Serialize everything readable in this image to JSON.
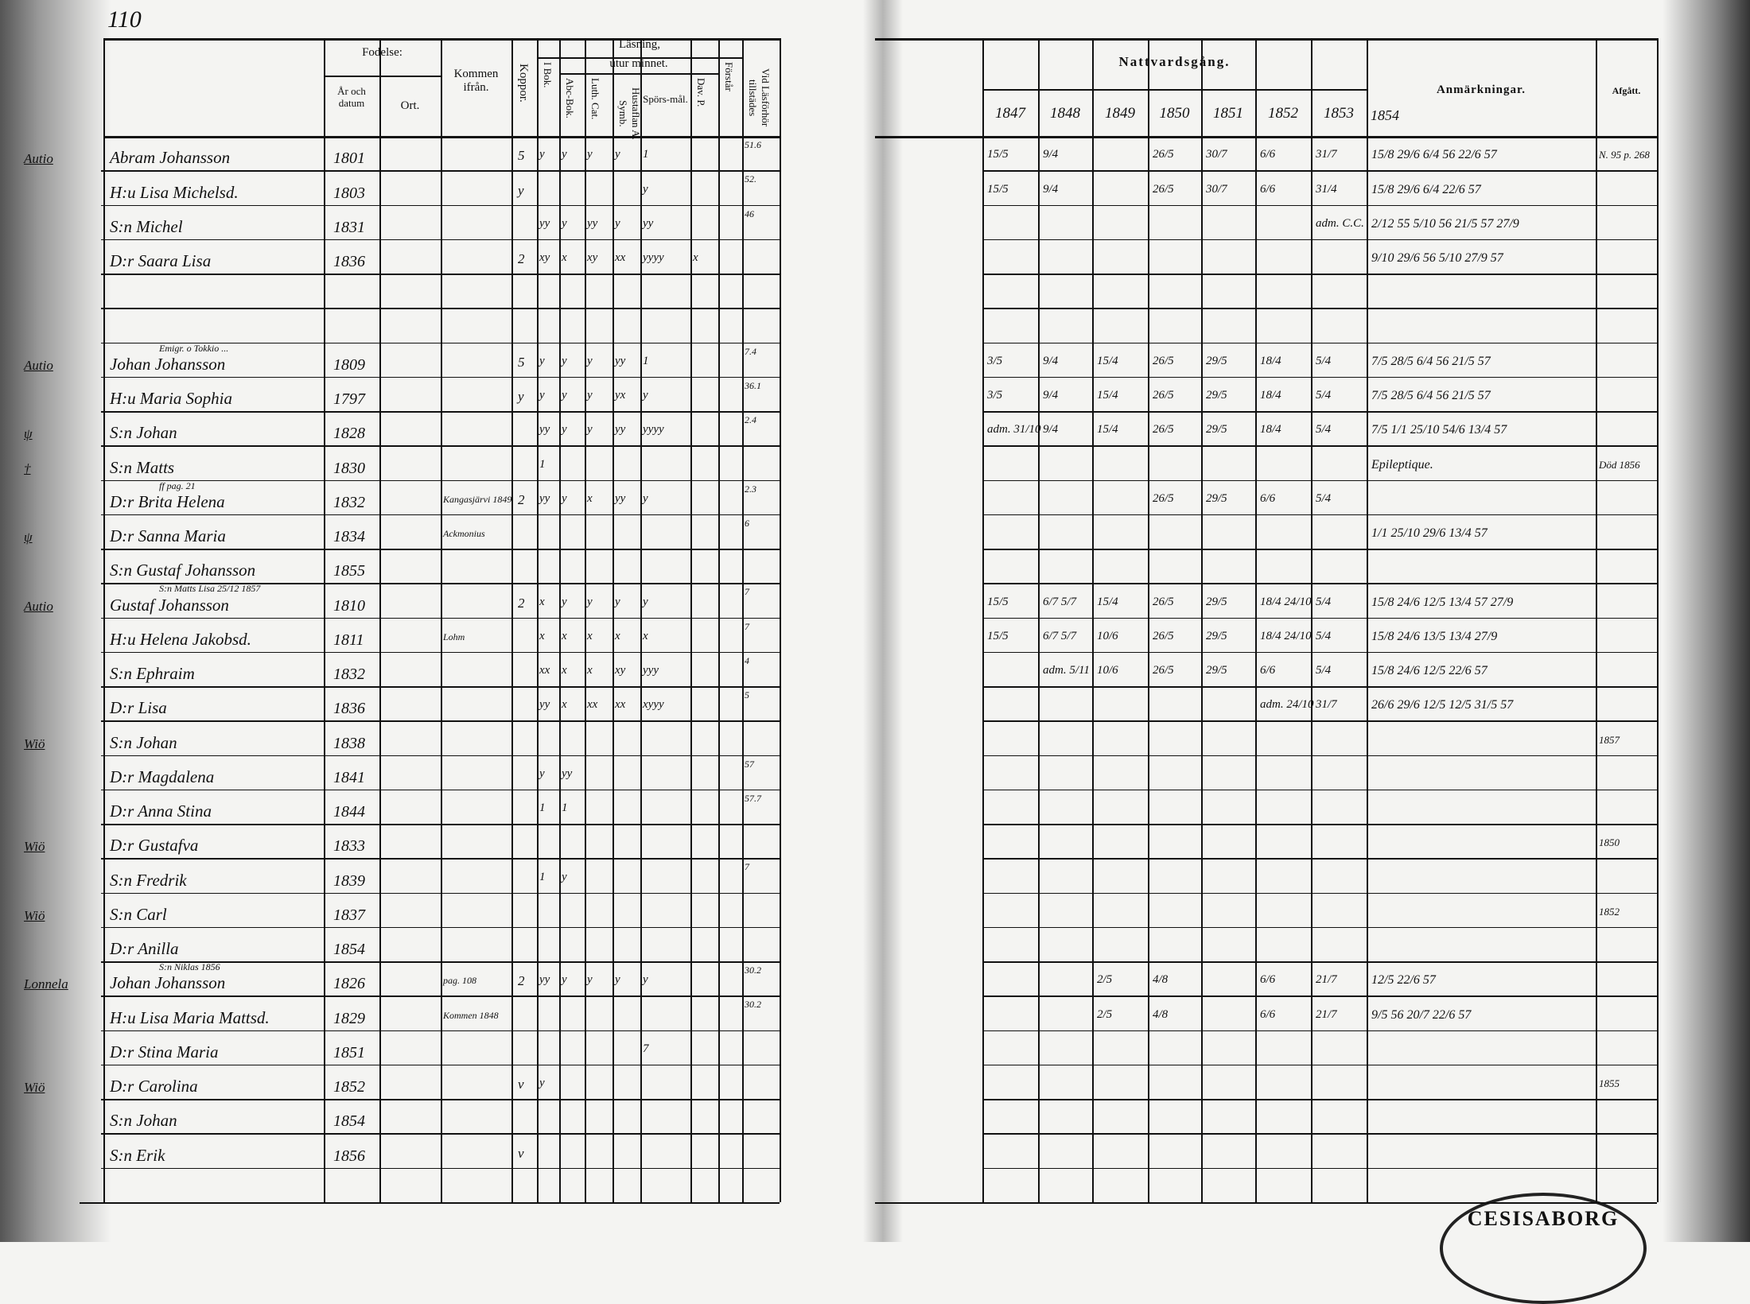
{
  "page_number": "110",
  "left_headers": {
    "fodelse": "Fodelse:",
    "ar_och_datum": "År och datum",
    "ort": "Ort.",
    "kommen_ifran": "Kommen ifrån.",
    "koppor": "Koppor.",
    "lasning": "Läsning,",
    "utur_minnet": "utur minnet.",
    "i_bok": "I Bok.",
    "abc_bok": "Abc-Bok.",
    "luth_cat": "Luth. Cat.",
    "hustaflan": "Hustaflan A. Symb.",
    "sporsmal": "Spörs-mål.",
    "dav_p": "Dav. P.",
    "forstar": "Förstår",
    "vid_lasforhor": "Vid Läsförhör tillstädes"
  },
  "right_headers": {
    "nattvardsgang": "Nattvardsgång.",
    "years": [
      "1847",
      "1848",
      "1849",
      "1850",
      "1851",
      "1852",
      "1853"
    ],
    "anmarkningar": "Anmärkningar.",
    "anm_year": "1854",
    "afgatt": "Afgått."
  },
  "rows": [
    {
      "margin": "Autio",
      "name": "Abram Johansson",
      "date": "1801",
      "koppor": "5",
      "reading": [
        "y",
        "y",
        "y",
        "y",
        "1",
        "",
        ""
      ],
      "vid": "51.6",
      "comm": [
        "15/5",
        "9/4",
        "",
        "26/5",
        "30/7",
        "6/6",
        "31/7"
      ],
      "anm": "15/8 29/6 6/4 56 22/6 57",
      "afgatt": "N. 95 p. 268"
    },
    {
      "name": "H:u Lisa Michelsd.",
      "date": "1803",
      "koppor": "y",
      "reading": [
        "",
        "",
        "",
        "",
        "y",
        "",
        ""
      ],
      "vid": "52.",
      "comm": [
        "15/5",
        "9/4",
        "",
        "26/5",
        "30/7",
        "6/6",
        "31/4"
      ],
      "anm": "15/8 29/6 6/4 22/6 57"
    },
    {
      "name": "S:n Michel",
      "date": "1831",
      "reading": [
        "yy",
        "y",
        "yy",
        "y",
        "yy",
        "",
        ""
      ],
      "vid": "46",
      "comm": [
        "",
        "",
        "",
        "",
        "",
        "",
        "adm. C.C."
      ],
      "anm": "2/12 55 5/10 56 21/5 57 27/9"
    },
    {
      "name": "D:r Saara Lisa",
      "date": "1836",
      "koppor": "2",
      "reading": [
        "xy",
        "x",
        "xy",
        "xx",
        "yyyy",
        "x",
        ""
      ],
      "vid": "",
      "comm": [
        "",
        "",
        "",
        "",
        "",
        "",
        ""
      ],
      "anm": "9/10 29/6 56 5/10 27/9 57"
    },
    {
      "name": "",
      "date": ""
    },
    {
      "name": "",
      "date": ""
    },
    {
      "margin": "Autio",
      "note": "Emigr. o Tokkio ...",
      "name": "Johan Johansson",
      "date": "1809",
      "koppor": "5",
      "reading": [
        "y",
        "y",
        "y",
        "yy",
        "1",
        "",
        ""
      ],
      "vid": "7.4",
      "comm": [
        "3/5",
        "9/4",
        "15/4",
        "26/5",
        "29/5",
        "18/4",
        "5/4"
      ],
      "anm": "7/5 28/5 6/4 56 21/5 57"
    },
    {
      "name": "H:u Maria Sophia",
      "date": "1797",
      "koppor": "y",
      "reading": [
        "y",
        "y",
        "y",
        "yx",
        "y",
        "",
        ""
      ],
      "vid": "36.1",
      "comm": [
        "3/5",
        "9/4",
        "15/4",
        "26/5",
        "29/5",
        "18/4",
        "5/4"
      ],
      "anm": "7/5 28/5 6/4 56 21/5 57"
    },
    {
      "margin": "ψ",
      "name": "S:n Johan",
      "date": "1828",
      "reading": [
        "yy",
        "y",
        "y",
        "yy",
        "yyyy",
        "",
        ""
      ],
      "vid": "2.4",
      "comm": [
        "adm. 31/10",
        "9/4",
        "15/4",
        "26/5",
        "29/5",
        "18/4",
        "5/4"
      ],
      "anm": "7/5 1/1 25/10 54/6 13/4 57"
    },
    {
      "margin": "†",
      "name": "S:n Matts",
      "date": "1830",
      "reading": [
        "1",
        "",
        "",
        "",
        "",
        "",
        ""
      ],
      "anm": "Epileptique.",
      "afgatt": "Död 1856"
    },
    {
      "note": "ff pag. 21",
      "name": "D:r Brita Helena",
      "date": "1832",
      "kommen": "Kangasjärvi 1849",
      "koppor": "2",
      "reading": [
        "yy",
        "y",
        "x",
        "yy",
        "y",
        "",
        ""
      ],
      "vid": "2.3",
      "comm": [
        "",
        "",
        "",
        "26/5",
        "29/5",
        "6/6",
        "5/4"
      ]
    },
    {
      "margin": "ψ",
      "name": "D:r Sanna Maria",
      "date": "1834",
      "kommen": "Ackmonius",
      "vid": "6",
      "anm": "1/1 25/10 29/6 13/4 57"
    },
    {
      "name": "S:n Gustaf Johansson",
      "date": "1855"
    },
    {
      "margin": "Autio",
      "note": "S:n Matts Lisa 25/12 1857",
      "name": "Gustaf Johansson",
      "date": "1810",
      "koppor": "2",
      "reading": [
        "x",
        "y",
        "y",
        "y",
        "y",
        "",
        ""
      ],
      "vid": "7",
      "comm": [
        "15/5",
        "6/7 5/7",
        "15/4",
        "26/5",
        "29/5",
        "18/4 24/10",
        "5/4"
      ],
      "anm": "15/8 24/6 12/5 13/4 57 27/9"
    },
    {
      "name": "H:u Helena Jakobsd.",
      "date": "1811",
      "kommen": "Lohm",
      "reading": [
        "x",
        "x",
        "x",
        "x",
        "x",
        "",
        ""
      ],
      "vid": "7",
      "comm": [
        "15/5",
        "6/7 5/7",
        "10/6",
        "26/5",
        "29/5",
        "18/4 24/10",
        "5/4"
      ],
      "anm": "15/8 24/6 13/5 13/4 27/9"
    },
    {
      "name": "S:n Ephraim",
      "date": "1832",
      "reading": [
        "xx",
        "x",
        "x",
        "xy",
        "yyy",
        "",
        ""
      ],
      "vid": "4",
      "comm": [
        "",
        "adm. 5/11",
        "10/6",
        "26/5",
        "29/5",
        "6/6",
        "5/4"
      ],
      "anm": "15/8 24/6 12/5 22/6 57"
    },
    {
      "name": "D:r Lisa",
      "date": "1836",
      "reading": [
        "yy",
        "x",
        "xx",
        "xx",
        "xyyy",
        "",
        ""
      ],
      "vid": "5",
      "comm": [
        "",
        "",
        "",
        "",
        "",
        "adm. 24/10",
        "31/7"
      ],
      "anm": "26/6 29/6 12/5 12/5 31/5 57"
    },
    {
      "margin": "Wiö",
      "name": "S:n Johan",
      "date": "1838",
      "afgatt": "1857"
    },
    {
      "name": "D:r Magdalena",
      "date": "1841",
      "reading": [
        "y",
        "yy",
        "",
        "",
        "",
        "",
        ""
      ],
      "vid": "57"
    },
    {
      "name": "D:r Anna Stina",
      "date": "1844",
      "reading": [
        "1",
        "1",
        "",
        "",
        "",
        "",
        ""
      ],
      "vid": "57.7"
    },
    {
      "margin": "Wiö",
      "name": "D:r Gustafva",
      "date": "1833",
      "afgatt": "1850"
    },
    {
      "name": "S:n Fredrik",
      "date": "1839",
      "reading": [
        "1",
        "y",
        "",
        "",
        "",
        "",
        ""
      ],
      "vid": "7"
    },
    {
      "margin": "Wiö",
      "name": "S:n Carl",
      "date": "1837",
      "afgatt": "1852"
    },
    {
      "name": "D:r Anilla",
      "date": "1854"
    },
    {
      "margin": "Lonnela",
      "note": "S:n Niklas 1856",
      "name": "Johan Johansson",
      "date": "1826",
      "kommen": "pag. 108",
      "koppor": "2",
      "reading": [
        "yy",
        "y",
        "y",
        "y",
        "y",
        "",
        ""
      ],
      "vid": "30.2",
      "comm": [
        "",
        "",
        "2/5",
        "4/8",
        "",
        "6/6",
        "21/7"
      ],
      "anm": "12/5 22/6 57"
    },
    {
      "name": "H:u Lisa Maria Mattsd.",
      "date": "1829",
      "kommen": "Kommen 1848",
      "reading": [
        "",
        "",
        "",
        "",
        "",
        "",
        ""
      ],
      "vid": "30.2",
      "comm": [
        "",
        "",
        "2/5",
        "4/8",
        "",
        "6/6",
        "21/7"
      ],
      "anm": "9/5 56 20/7 22/6 57"
    },
    {
      "name": "D:r Stina Maria",
      "date": "1851",
      "reading": [
        "",
        "",
        "",
        "",
        "7",
        "",
        ""
      ]
    },
    {
      "margin": "Wiö",
      "name": "D:r Carolina",
      "date": "1852",
      "koppor": "v",
      "reading": [
        "y",
        "",
        "",
        "",
        "",
        "",
        ""
      ],
      "afgatt": "1855"
    },
    {
      "name": "S:n Johan",
      "date": "1854"
    },
    {
      "name": "S:n Erik",
      "date": "1856",
      "koppor": "v"
    },
    {
      "name": "",
      "date": ""
    }
  ],
  "stamp": "CESISABORG"
}
